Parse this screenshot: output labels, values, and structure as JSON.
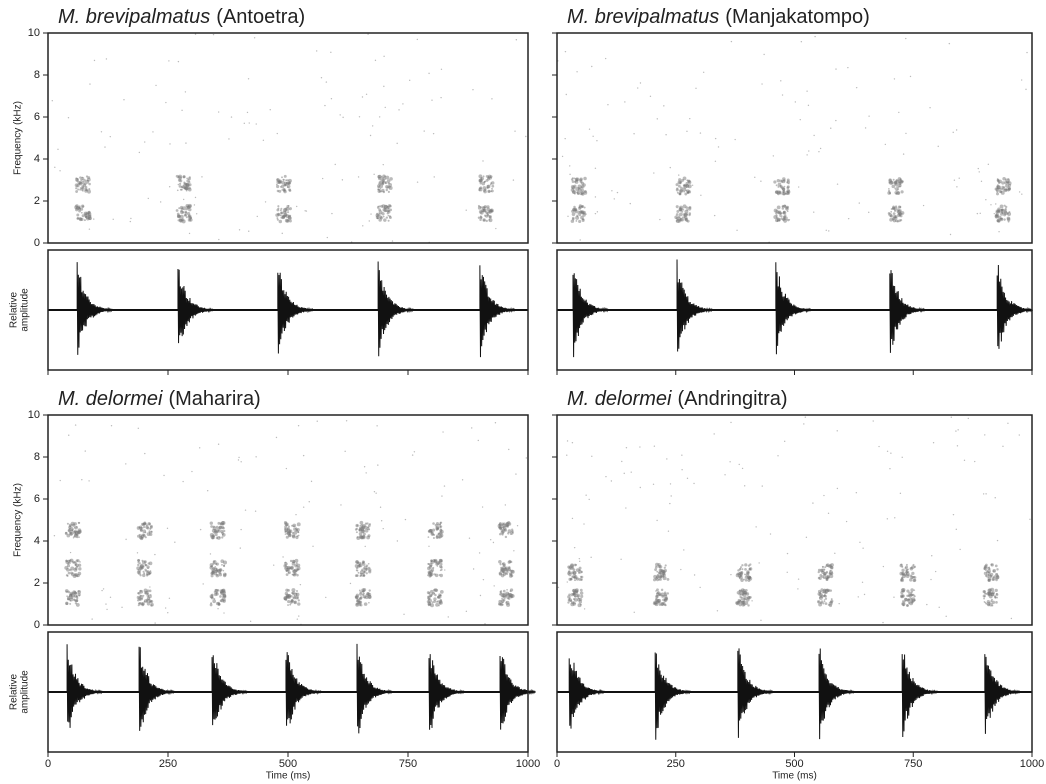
{
  "chart_data": [
    {
      "type": "spectrogram",
      "species": "M. brevipalmatus",
      "location": "(Antoetra)",
      "ylabel": "Frequency (kHz)",
      "amplitude_label": [
        "Relative",
        "amplitude"
      ],
      "ylim": [
        0,
        10
      ],
      "yticks": [
        0,
        2,
        4,
        6,
        8,
        10
      ],
      "xlim": [
        0,
        1000
      ],
      "xticks": [
        0,
        250,
        500,
        750,
        1000
      ],
      "call_times": [
        67,
        277,
        485,
        694,
        906
      ],
      "bands": [
        1.4,
        2.8
      ]
    },
    {
      "type": "spectrogram",
      "species": "M. brevipalmatus",
      "location": "(Manjakatompo)",
      "ylim": [
        0,
        10
      ],
      "yticks": [
        0,
        2,
        4,
        6,
        8,
        10
      ],
      "xlim": [
        0,
        1000
      ],
      "xticks": [
        0,
        250,
        500,
        750,
        1000
      ],
      "call_times": [
        40,
        259,
        467,
        707,
        933
      ],
      "bands": [
        1.4,
        2.7
      ]
    },
    {
      "type": "spectrogram",
      "species": "M. delormei",
      "location": "(Maharira)",
      "ylabel": "Frequency (kHz)",
      "amplitude_label": [
        "Relative",
        "amplitude"
      ],
      "xlabel": "Time (ms)",
      "ylim": [
        0,
        10
      ],
      "yticks": [
        0,
        2,
        4,
        6,
        8,
        10
      ],
      "xlim": [
        0,
        1000
      ],
      "xticks": [
        0,
        250,
        500,
        750,
        1000
      ],
      "call_times": [
        46,
        196,
        348,
        502,
        650,
        800,
        948
      ],
      "bands": [
        1.3,
        2.7,
        4.5
      ]
    },
    {
      "type": "spectrogram",
      "species": "M. delormei",
      "location": "(Andringitra)",
      "xlabel": "Time (ms)",
      "ylim": [
        0,
        10
      ],
      "yticks": [
        0,
        2,
        4,
        6,
        8,
        10
      ],
      "xlim": [
        0,
        1000
      ],
      "xticks": [
        0,
        250,
        500,
        750,
        1000
      ],
      "call_times": [
        32,
        213,
        387,
        558,
        733,
        907
      ],
      "bands": [
        1.3,
        2.5
      ]
    }
  ]
}
